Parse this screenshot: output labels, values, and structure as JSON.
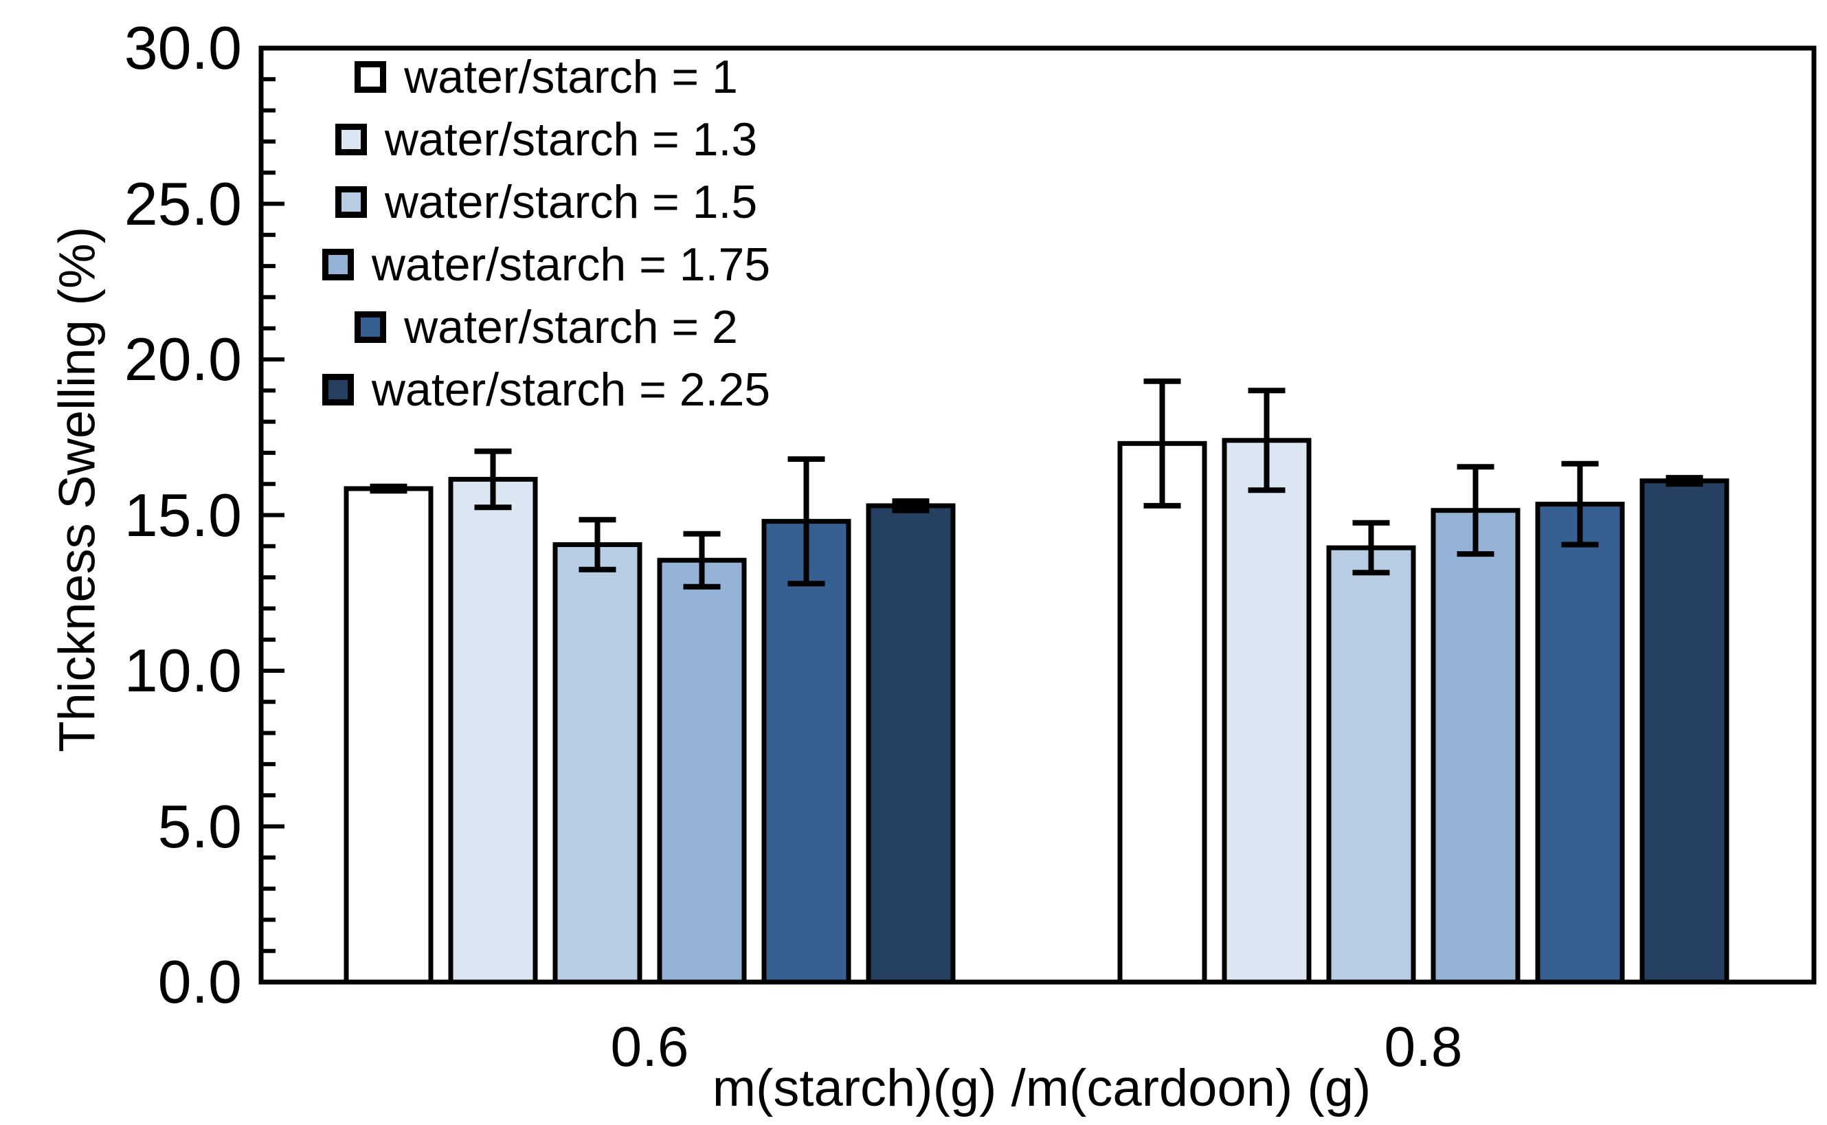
{
  "chart_data": {
    "type": "bar",
    "title": "",
    "xlabel": "m(starch)(g) /m(cardoon) (g)",
    "ylabel": "Thickness Swelling (%)",
    "categories": [
      "0.6",
      "0.8"
    ],
    "ylim": [
      0,
      30
    ],
    "ytick_major_step": 5,
    "ytick_minor_step": 1,
    "ytick_labels": [
      "0.0",
      "5.0",
      "10.0",
      "15.0",
      "20.0",
      "25.0",
      "30.0"
    ],
    "grid": false,
    "legend_position": "top-left-inside",
    "error_bars": true,
    "series": [
      {
        "name": "water/starch = 1",
        "color": "#ffffff",
        "values": [
          15.85,
          17.3
        ],
        "errors": [
          0.07,
          2.0
        ]
      },
      {
        "name": "water/starch = 1.3",
        "color": "#dce6f2",
        "values": [
          16.15,
          17.4
        ],
        "errors": [
          0.9,
          1.6
        ]
      },
      {
        "name": "water/starch = 1.5",
        "color": "#b8cce4",
        "values": [
          14.05,
          13.95
        ],
        "errors": [
          0.8,
          0.8
        ]
      },
      {
        "name": "water/starch = 1.75",
        "color": "#95b3d7",
        "values": [
          13.55,
          15.15
        ],
        "errors": [
          0.85,
          1.4
        ]
      },
      {
        "name": "water/starch = 2",
        "color": "#376092",
        "values": [
          14.8,
          15.35
        ],
        "errors": [
          2.0,
          1.3
        ]
      },
      {
        "name": "water/starch = 2.25",
        "color": "#254061",
        "values": [
          15.3,
          16.1
        ],
        "errors": [
          0.15,
          0.1
        ]
      }
    ],
    "axis_color": "#000000",
    "bar_outline_color": "#000000",
    "error_bar_color": "#000000"
  }
}
